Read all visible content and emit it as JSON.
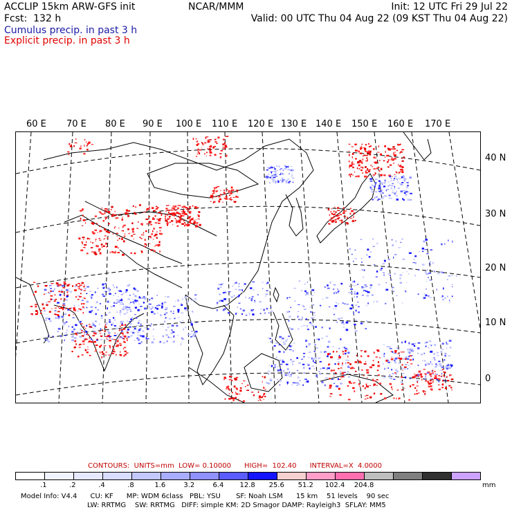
{
  "header": {
    "title": "ACCLIP 15km ARW-GFS init",
    "forecast": "Fcst:  132 h",
    "center": "NCAR/MMM",
    "init": "Init: 12 UTC Fri 29 Jul 22",
    "valid": "Valid: 00 UTC Thu 04 Aug 22 (09 KST Thu 04 Aug 22)",
    "legend_cumulus": "Cumulus precip. in past 3 h",
    "legend_explicit": "Explicit precip. in past 3 h",
    "cumulus_color": "#1a1aa6",
    "explicit_color": "#e00000"
  },
  "map": {
    "lon_labels": [
      "60 E",
      "70 E",
      "80 E",
      "90 E",
      "100 E",
      "110 E",
      "120 E",
      "130 E",
      "140 E",
      "150 E",
      "160 E",
      "170 E"
    ],
    "lat_labels": [
      "40 N",
      "30 N",
      "20 N",
      "10 N",
      "0"
    ]
  },
  "contours": {
    "text": "CONTOURS:  UNITS=mm  LOW= 0.10000      HIGH=  102.40      INTERVAL=X  4.0000",
    "color": "#c00000"
  },
  "colorbar": {
    "colors": [
      "#ffffff",
      "#f2f4ff",
      "#e6e9ff",
      "#d9ddff",
      "#c3c8ff",
      "#a9adff",
      "#8f91ff",
      "#5a5cff",
      "#1414ff",
      "#f7d0d0",
      "#ff9ec9",
      "#ff6fb0",
      "#bebebe",
      "#7f7f7f",
      "#303030",
      "#cca3ff"
    ],
    "ticks": [
      ".1",
      ".2",
      ".4",
      ".8",
      "1.6",
      "3.2",
      "6.4",
      "12.8",
      "25.6",
      "51.2",
      "102.4",
      "204.8"
    ],
    "unit": "mm"
  },
  "footer": {
    "line1": "Model Info: V4.4      CU: KF      MP: WDM 6class   PBL: YSU       SF: Noah LSM      15 km    51 levels    90 sec",
    "line2": "LW: RRTMG    SW: RRTMG   DIFF: simple KM: 2D Smagor DAMP: Rayleigh3  SFLAY: MM5"
  }
}
